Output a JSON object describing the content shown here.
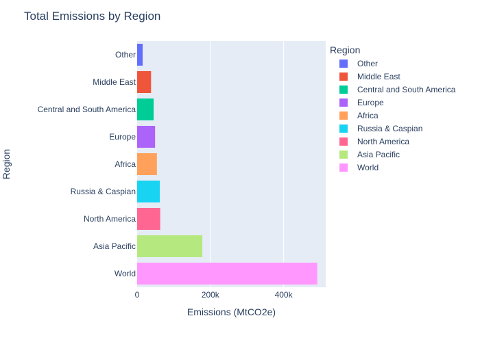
{
  "chart_data": {
    "type": "bar",
    "orientation": "horizontal",
    "title": "Total Emissions by Region",
    "xlabel": "Emissions (MtCO2e)",
    "ylabel": "Region",
    "xlim": [
      0,
      515000
    ],
    "x_ticks": [
      0,
      200000,
      400000
    ],
    "x_tick_labels": [
      "0",
      "200k",
      "400k"
    ],
    "grid": true,
    "legend": {
      "title": "Region",
      "placement": "right"
    },
    "categories": [
      "Other",
      "Middle East",
      "Central and South America",
      "Europe",
      "Africa",
      "Russia & Caspian",
      "North America",
      "Asia Pacific",
      "World"
    ],
    "values": [
      15000,
      38000,
      45000,
      49000,
      54000,
      62000,
      63000,
      178000,
      492000
    ],
    "colors": [
      "#636efa",
      "#EF553B",
      "#00cc96",
      "#ab63fa",
      "#FFA15A",
      "#19d3f3",
      "#FF6692",
      "#B6E880",
      "#FF97FF"
    ]
  }
}
